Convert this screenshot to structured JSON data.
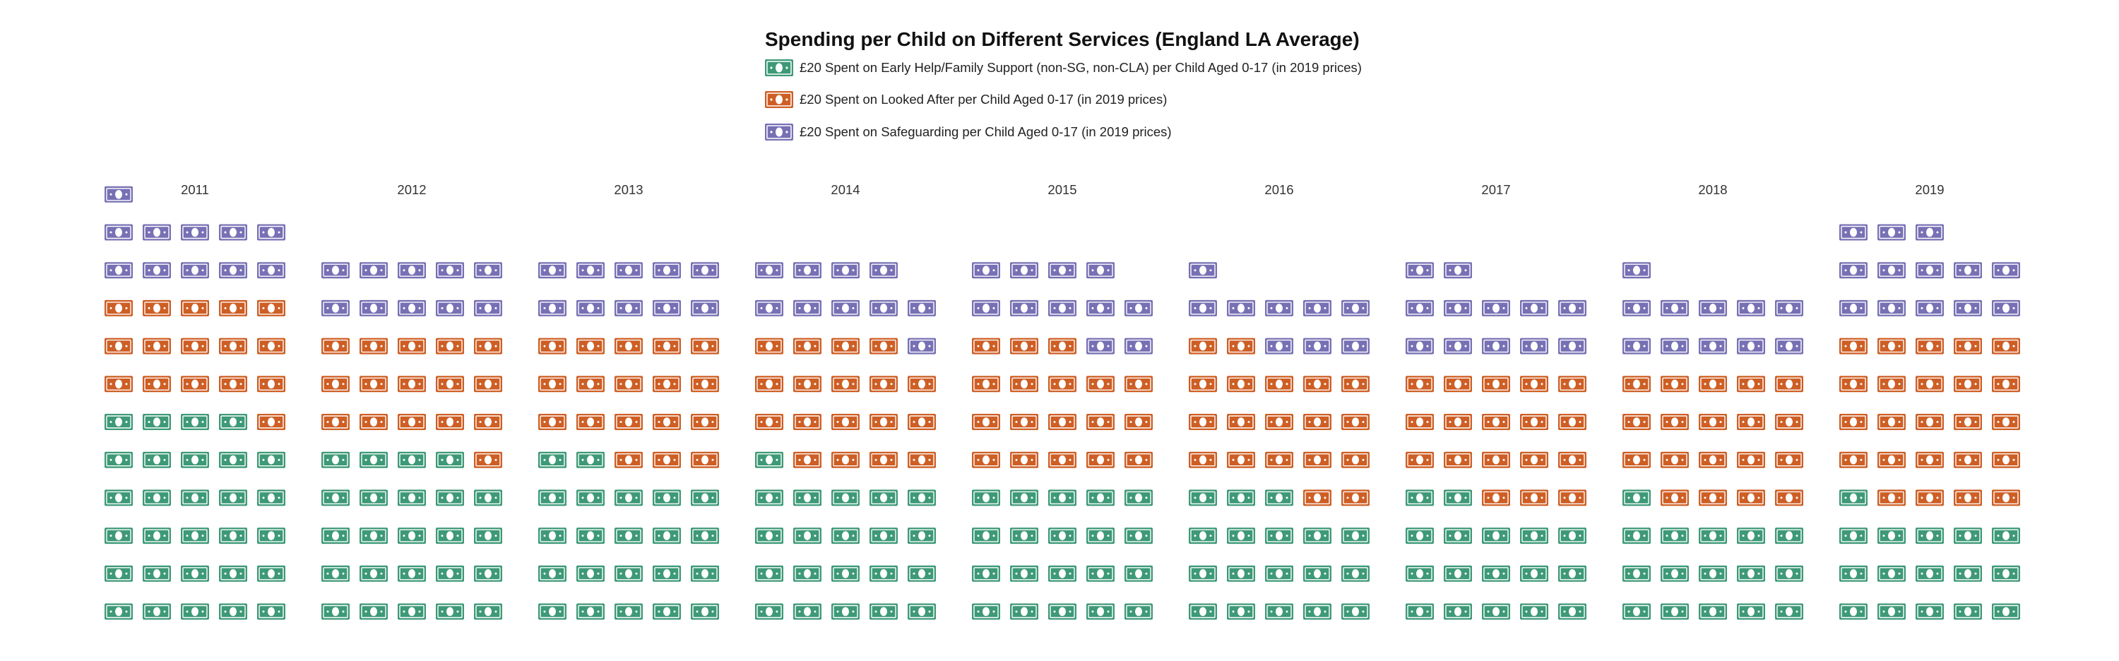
{
  "title": "Spending per Child on Different Services (England LA Average)",
  "legend": [
    {
      "key": "early_help",
      "label": "£20 Spent on Early Help/Family Support (non-SG, non-CLA) per Child Aged 0-17 (in 2019 prices)",
      "color": "#3d9977"
    },
    {
      "key": "looked_after",
      "label": "£20 Spent on Looked After per Child Aged 0-17 (in 2019 prices)",
      "color": "#ce5e24"
    },
    {
      "key": "safeguarding",
      "label": "£20 Spent on Safeguarding per Child Aged 0-17 (in 2019 prices)",
      "color": "#7770b4"
    }
  ],
  "icon": "banknote-icon",
  "chart_data": {
    "type": "waffle",
    "unit": "£20",
    "columns_per_panel": 5,
    "fill_order": "bottom-up, left-to-right",
    "categories": [
      "2011",
      "2012",
      "2013",
      "2014",
      "2015",
      "2016",
      "2017",
      "2018",
      "2019"
    ],
    "series": [
      {
        "name": "£20 Spent on Early Help/Family Support (non-SG, non-CLA) per Child Aged 0-17 (in 2019 prices)",
        "values": [
          29,
          24,
          22,
          21,
          20,
          18,
          17,
          16,
          16
        ]
      },
      {
        "name": "£20 Spent on Looked After per Child Aged 0-17 (in 2019 prices)",
        "values": [
          16,
          16,
          18,
          18,
          18,
          19,
          18,
          19,
          24
        ]
      },
      {
        "name": "£20 Spent on Safeguarding per Child Aged 0-17 (in 2019 prices)",
        "values": [
          11,
          10,
          10,
          10,
          11,
          9,
          12,
          11,
          13
        ]
      }
    ]
  }
}
